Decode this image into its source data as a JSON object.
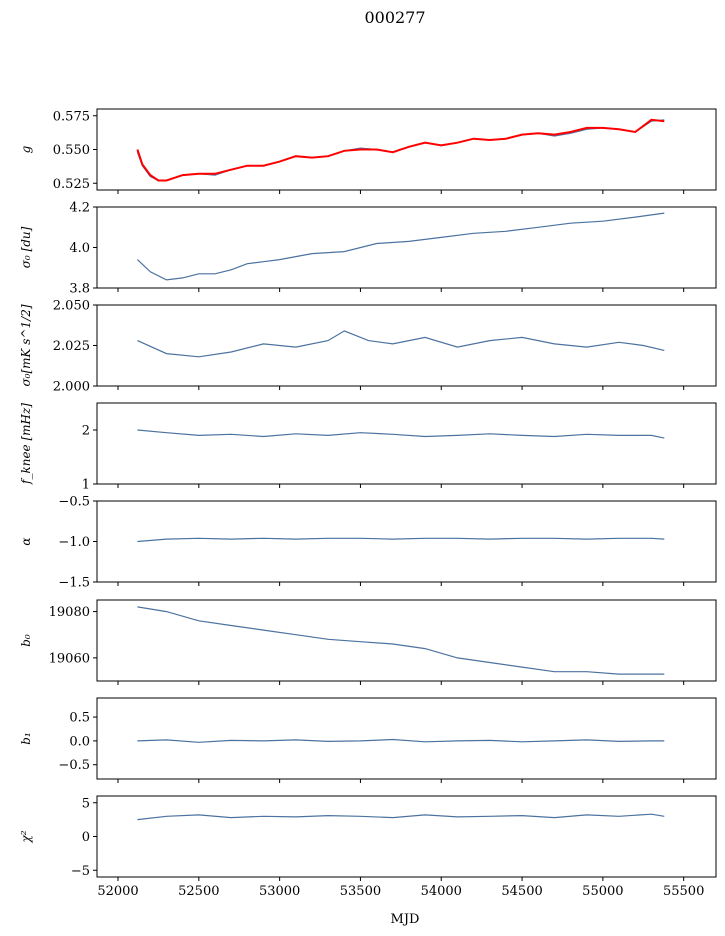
{
  "figure": {
    "title": "000277",
    "xlabel": "MJD",
    "xlim": [
      51870,
      55700
    ],
    "xticks": [
      52000,
      52500,
      53000,
      53500,
      54000,
      54500,
      55000,
      55500
    ],
    "line_color": "#4c72a0",
    "fit_color": "#ff0000"
  },
  "chart_data": [
    {
      "type": "line",
      "panel": "g",
      "ylabel": "g",
      "ylim": [
        0.52,
        0.58
      ],
      "yticks": [
        0.525,
        0.55,
        0.575
      ],
      "ytick_labels": [
        "0.525",
        "0.550",
        "0.575"
      ],
      "x": [
        52120,
        52150,
        52200,
        52250,
        52300,
        52400,
        52500,
        52600,
        52700,
        52800,
        52900,
        53000,
        53100,
        53200,
        53300,
        53400,
        53500,
        53600,
        53700,
        53800,
        53900,
        54000,
        54100,
        54200,
        54300,
        54400,
        54500,
        54600,
        54700,
        54800,
        54900,
        55000,
        55100,
        55200,
        55300,
        55380
      ],
      "series": [
        {
          "values": [
            0.548,
            0.538,
            0.53,
            0.527,
            0.527,
            0.531,
            0.532,
            0.531,
            0.535,
            0.538,
            0.538,
            0.541,
            0.545,
            0.544,
            0.545,
            0.549,
            0.551,
            0.55,
            0.548,
            0.552,
            0.555,
            0.553,
            0.555,
            0.558,
            0.557,
            0.558,
            0.561,
            0.562,
            0.56,
            0.562,
            0.565,
            0.566,
            0.565,
            0.563,
            0.571,
            0.572
          ]
        },
        {
          "values": [
            0.55,
            0.539,
            0.531,
            0.527,
            0.527,
            0.531,
            0.532,
            0.532,
            0.535,
            0.538,
            0.538,
            0.541,
            0.545,
            0.544,
            0.545,
            0.549,
            0.55,
            0.55,
            0.548,
            0.552,
            0.555,
            0.553,
            0.555,
            0.558,
            0.557,
            0.558,
            0.561,
            0.562,
            0.561,
            0.563,
            0.566,
            0.566,
            0.565,
            0.563,
            0.572,
            0.571
          ]
        }
      ]
    },
    {
      "type": "line",
      "panel": "sigma0-du",
      "ylabel": "σ₀ [du]",
      "ylim": [
        3.8,
        4.2
      ],
      "yticks": [
        3.8,
        4.0,
        4.2
      ],
      "ytick_labels": [
        "3.8",
        "4.0",
        "4.2"
      ],
      "x": [
        52120,
        52200,
        52300,
        52400,
        52500,
        52600,
        52700,
        52800,
        52900,
        53000,
        53200,
        53400,
        53600,
        53800,
        54000,
        54200,
        54400,
        54600,
        54800,
        55000,
        55200,
        55380
      ],
      "series": [
        {
          "values": [
            3.94,
            3.88,
            3.84,
            3.85,
            3.87,
            3.87,
            3.89,
            3.92,
            3.93,
            3.94,
            3.97,
            3.98,
            4.02,
            4.03,
            4.05,
            4.07,
            4.08,
            4.1,
            4.12,
            4.13,
            4.15,
            4.17
          ]
        }
      ]
    },
    {
      "type": "line",
      "panel": "sigma0-mks",
      "ylabel": "σ₀[mK s^1/2]",
      "ylim": [
        2.0,
        2.05
      ],
      "yticks": [
        2.0,
        2.025,
        2.05
      ],
      "ytick_labels": [
        "2.000",
        "2.025",
        "2.050"
      ],
      "x": [
        52120,
        52300,
        52500,
        52700,
        52900,
        53100,
        53300,
        53400,
        53550,
        53700,
        53900,
        54100,
        54300,
        54500,
        54700,
        54900,
        55100,
        55250,
        55380
      ],
      "series": [
        {
          "values": [
            2.028,
            2.02,
            2.018,
            2.021,
            2.026,
            2.024,
            2.028,
            2.034,
            2.028,
            2.026,
            2.03,
            2.024,
            2.028,
            2.03,
            2.026,
            2.024,
            2.027,
            2.025,
            2.022
          ]
        }
      ]
    },
    {
      "type": "line",
      "panel": "fknee",
      "ylabel": "f_knee [mHz]",
      "ylim": [
        1.0,
        2.5
      ],
      "yticks": [
        1,
        2
      ],
      "ytick_labels": [
        "1",
        "2"
      ],
      "x": [
        52120,
        52300,
        52500,
        52700,
        52900,
        53100,
        53300,
        53500,
        53700,
        53900,
        54100,
        54300,
        54500,
        54700,
        54900,
        55100,
        55300,
        55380
      ],
      "series": [
        {
          "values": [
            2.0,
            1.95,
            1.9,
            1.92,
            1.88,
            1.93,
            1.9,
            1.95,
            1.92,
            1.88,
            1.9,
            1.93,
            1.9,
            1.88,
            1.92,
            1.9,
            1.9,
            1.85
          ]
        }
      ]
    },
    {
      "type": "line",
      "panel": "alpha",
      "ylabel": "α",
      "ylim": [
        -1.5,
        -0.5
      ],
      "yticks": [
        -1.5,
        -1.0,
        -0.5
      ],
      "ytick_labels": [
        "−1.5",
        "−1.0",
        "−0.5"
      ],
      "x": [
        52120,
        52300,
        52500,
        52700,
        52900,
        53100,
        53300,
        53500,
        53700,
        53900,
        54100,
        54300,
        54500,
        54700,
        54900,
        55100,
        55300,
        55380
      ],
      "series": [
        {
          "values": [
            -1.0,
            -0.97,
            -0.96,
            -0.97,
            -0.96,
            -0.97,
            -0.96,
            -0.96,
            -0.97,
            -0.96,
            -0.96,
            -0.97,
            -0.96,
            -0.96,
            -0.97,
            -0.96,
            -0.96,
            -0.97
          ]
        }
      ]
    },
    {
      "type": "line",
      "panel": "b0",
      "ylabel": "b₀",
      "ylim": [
        19050,
        19085
      ],
      "yticks": [
        19060,
        19080
      ],
      "ytick_labels": [
        "19060",
        "19080"
      ],
      "x": [
        52120,
        52300,
        52500,
        52700,
        52900,
        53100,
        53300,
        53500,
        53700,
        53900,
        54100,
        54300,
        54500,
        54700,
        54900,
        55100,
        55300,
        55380
      ],
      "series": [
        {
          "values": [
            19082,
            19080,
            19076,
            19074,
            19072,
            19070,
            19068,
            19067,
            19066,
            19064,
            19060,
            19058,
            19056,
            19054,
            19054,
            19053,
            19053,
            19053
          ]
        }
      ]
    },
    {
      "type": "line",
      "panel": "b1",
      "ylabel": "b₁",
      "ylim": [
        -0.8,
        0.9
      ],
      "yticks": [
        -0.5,
        0.0,
        0.5
      ],
      "ytick_labels": [
        "−0.5",
        "0.0",
        "0.5"
      ],
      "x": [
        52120,
        52300,
        52500,
        52700,
        52900,
        53100,
        53300,
        53500,
        53700,
        53900,
        54100,
        54300,
        54500,
        54700,
        54900,
        55100,
        55300,
        55380
      ],
      "series": [
        {
          "values": [
            0.0,
            0.02,
            -0.03,
            0.01,
            0.0,
            0.02,
            -0.01,
            0.0,
            0.03,
            -0.02,
            0.0,
            0.01,
            -0.02,
            0.0,
            0.02,
            -0.01,
            0.0,
            0.0
          ]
        }
      ]
    },
    {
      "type": "line",
      "panel": "chi2",
      "ylabel": "χ²",
      "ylim": [
        -6,
        6
      ],
      "yticks": [
        -5,
        0,
        5
      ],
      "ytick_labels": [
        "−5",
        "0",
        "5"
      ],
      "x": [
        52120,
        52300,
        52500,
        52700,
        52900,
        53100,
        53300,
        53500,
        53700,
        53900,
        54100,
        54300,
        54500,
        54700,
        54900,
        55100,
        55300,
        55380
      ],
      "series": [
        {
          "values": [
            2.5,
            3.0,
            3.2,
            2.8,
            3.0,
            2.9,
            3.1,
            3.0,
            2.8,
            3.2,
            2.9,
            3.0,
            3.1,
            2.8,
            3.2,
            3.0,
            3.3,
            3.0
          ]
        }
      ]
    }
  ]
}
